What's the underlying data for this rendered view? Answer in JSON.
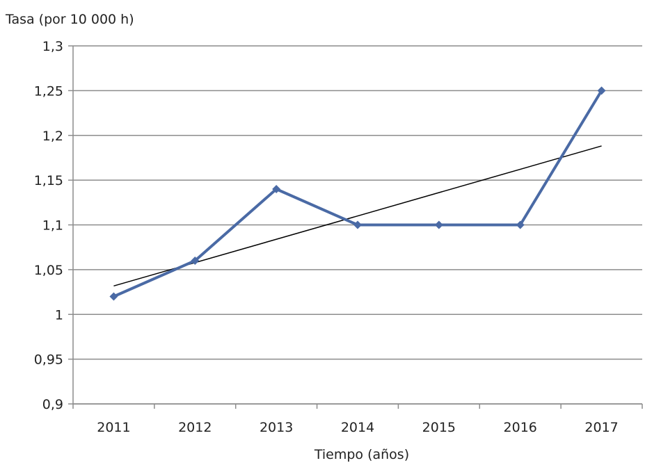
{
  "chart_data": {
    "type": "line",
    "title": "",
    "ylabel": "Tasa (por 10 000 h)",
    "xlabel": "Tiempo (años)",
    "categories": [
      "2011",
      "2012",
      "2013",
      "2014",
      "2015",
      "2016",
      "2017"
    ],
    "series": [
      {
        "values": [
          1.02,
          1.06,
          1.14,
          1.1,
          1.1,
          1.1,
          1.25
        ],
        "color": "#4a6aa5",
        "marker": "diamond"
      }
    ],
    "trendline": {
      "type": "linear",
      "color": "#000000"
    },
    "ylim": [
      0.9,
      1.3
    ],
    "yticks": [
      0.9,
      0.95,
      1,
      1.05,
      1.1,
      1.15,
      1.2,
      1.25,
      1.3
    ],
    "ytick_labels": [
      "0,9",
      "0,95",
      "1",
      "1,05",
      "1,1",
      "1,15",
      "1,2",
      "1,25",
      "1,3"
    ],
    "grid": "horizontal",
    "legend": "none",
    "colors": {
      "grid": "#8c8c8c",
      "axis": "#8c8c8c"
    }
  }
}
